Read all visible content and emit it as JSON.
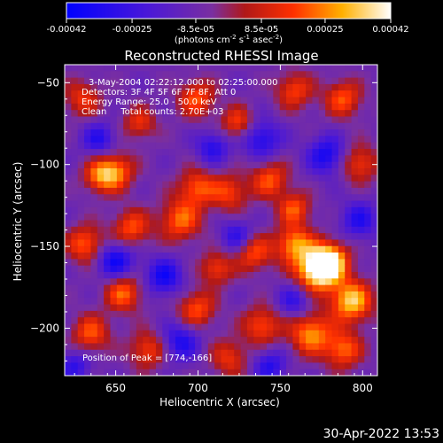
{
  "colorbar": {
    "tick_labels": [
      "-0.00042",
      "-0.00025",
      "-8.5e-05",
      "8.5e-05",
      "0.00025",
      "0.00042"
    ],
    "tick_values": [
      -0.00042,
      -0.00025,
      -8.5e-05,
      8.5e-05,
      0.00025,
      0.00042
    ],
    "range": [
      -0.00042,
      0.00042
    ],
    "units_main": "(photons cm",
    "units_exp1": "-2",
    "units_mid": " s",
    "units_exp2": "-1",
    "units_mid2": " asec",
    "units_exp3": "-2",
    "units_close": ")",
    "stops": [
      {
        "at": 0.0,
        "color": "#0000ff"
      },
      {
        "at": 0.25,
        "color": "#4a18d8"
      },
      {
        "at": 0.45,
        "color": "#7a2fa0"
      },
      {
        "at": 0.55,
        "color": "#b01818"
      },
      {
        "at": 0.7,
        "color": "#ff3000"
      },
      {
        "at": 0.85,
        "color": "#ffb000"
      },
      {
        "at": 1.0,
        "color": "#ffffff"
      }
    ]
  },
  "chart_data": {
    "type": "heatmap",
    "title": "Reconstructed RHESSI Image",
    "xlabel": "Heliocentric X (arcsec)",
    "ylabel": "Heliocentric Y (arcsec)",
    "xlim": [
      619,
      809
    ],
    "ylim": [
      -229,
      -39
    ],
    "xticks": [
      650,
      700,
      750,
      800
    ],
    "xtick_labels": [
      "650",
      "700",
      "750",
      "800"
    ],
    "yticks": [
      -50,
      -100,
      -150,
      -200
    ],
    "ytick_labels": [
      "−50",
      "−100",
      "−150",
      "−200"
    ],
    "annotations": [
      "3-May-2004 02:22:12.000 to 02:25:00.000",
      "Detectors: 3F 4F 5F 6F 7F 8F, Att 0",
      "Energy Range: 25.0 - 50.0 keV",
      "Clean     Total counts: 2.70E+03"
    ],
    "peak_label": "Position of Peak = [774,-166]",
    "peak": [
      774,
      -166
    ],
    "blobs": [
      {
        "x": 774,
        "y": -166,
        "v": 1.0,
        "r": 9
      },
      {
        "x": 782,
        "y": -160,
        "v": 0.8,
        "r": 8
      },
      {
        "x": 795,
        "y": -185,
        "v": 0.85,
        "r": 9
      },
      {
        "x": 760,
        "y": -150,
        "v": 0.7,
        "r": 8
      },
      {
        "x": 770,
        "y": -205,
        "v": 0.7,
        "r": 9
      },
      {
        "x": 790,
        "y": -215,
        "v": 0.6,
        "r": 8
      },
      {
        "x": 760,
        "y": -128,
        "v": 0.55,
        "r": 7
      },
      {
        "x": 745,
        "y": -110,
        "v": 0.55,
        "r": 8
      },
      {
        "x": 720,
        "y": -118,
        "v": 0.5,
        "r": 8
      },
      {
        "x": 700,
        "y": -115,
        "v": 0.55,
        "r": 8
      },
      {
        "x": 650,
        "y": -105,
        "v": 0.65,
        "r": 8
      },
      {
        "x": 640,
        "y": -108,
        "v": 0.5,
        "r": 7
      },
      {
        "x": 632,
        "y": -150,
        "v": 0.6,
        "r": 8
      },
      {
        "x": 660,
        "y": -140,
        "v": 0.55,
        "r": 8
      },
      {
        "x": 690,
        "y": -135,
        "v": 0.6,
        "r": 9
      },
      {
        "x": 655,
        "y": -180,
        "v": 0.6,
        "r": 8
      },
      {
        "x": 635,
        "y": -205,
        "v": 0.55,
        "r": 8
      },
      {
        "x": 700,
        "y": -190,
        "v": 0.55,
        "r": 8
      },
      {
        "x": 712,
        "y": -165,
        "v": 0.5,
        "r": 7
      },
      {
        "x": 735,
        "y": -155,
        "v": 0.55,
        "r": 8
      },
      {
        "x": 740,
        "y": -200,
        "v": 0.55,
        "r": 8
      },
      {
        "x": 700,
        "y": -60,
        "v": 0.55,
        "r": 8
      },
      {
        "x": 725,
        "y": -75,
        "v": 0.5,
        "r": 7
      },
      {
        "x": 760,
        "y": -55,
        "v": 0.5,
        "r": 8
      },
      {
        "x": 790,
        "y": -60,
        "v": 0.55,
        "r": 8
      },
      {
        "x": 800,
        "y": -100,
        "v": 0.5,
        "r": 8
      },
      {
        "x": 630,
        "y": -60,
        "v": 0.45,
        "r": 8
      },
      {
        "x": 665,
        "y": -75,
        "v": 0.45,
        "r": 7
      },
      {
        "x": 670,
        "y": -215,
        "v": 0.5,
        "r": 8
      },
      {
        "x": 720,
        "y": -220,
        "v": 0.45,
        "r": 8
      },
      {
        "x": 780,
        "y": -95,
        "v": -0.55,
        "r": 8
      },
      {
        "x": 740,
        "y": -85,
        "v": -0.5,
        "r": 8
      },
      {
        "x": 650,
        "y": -160,
        "v": -0.6,
        "r": 8
      },
      {
        "x": 680,
        "y": -170,
        "v": -0.55,
        "r": 8
      },
      {
        "x": 640,
        "y": -85,
        "v": -0.45,
        "r": 7
      },
      {
        "x": 710,
        "y": -90,
        "v": -0.45,
        "r": 7
      },
      {
        "x": 690,
        "y": -210,
        "v": -0.5,
        "r": 8
      },
      {
        "x": 725,
        "y": -145,
        "v": -0.45,
        "r": 7
      },
      {
        "x": 760,
        "y": -185,
        "v": -0.4,
        "r": 7
      },
      {
        "x": 800,
        "y": -135,
        "v": -0.45,
        "r": 8
      },
      {
        "x": 745,
        "y": -225,
        "v": -0.45,
        "r": 7
      },
      {
        "x": 625,
        "y": -225,
        "v": -0.4,
        "r": 7
      }
    ]
  },
  "footer_timestamp": "30-Apr-2022 13:53"
}
